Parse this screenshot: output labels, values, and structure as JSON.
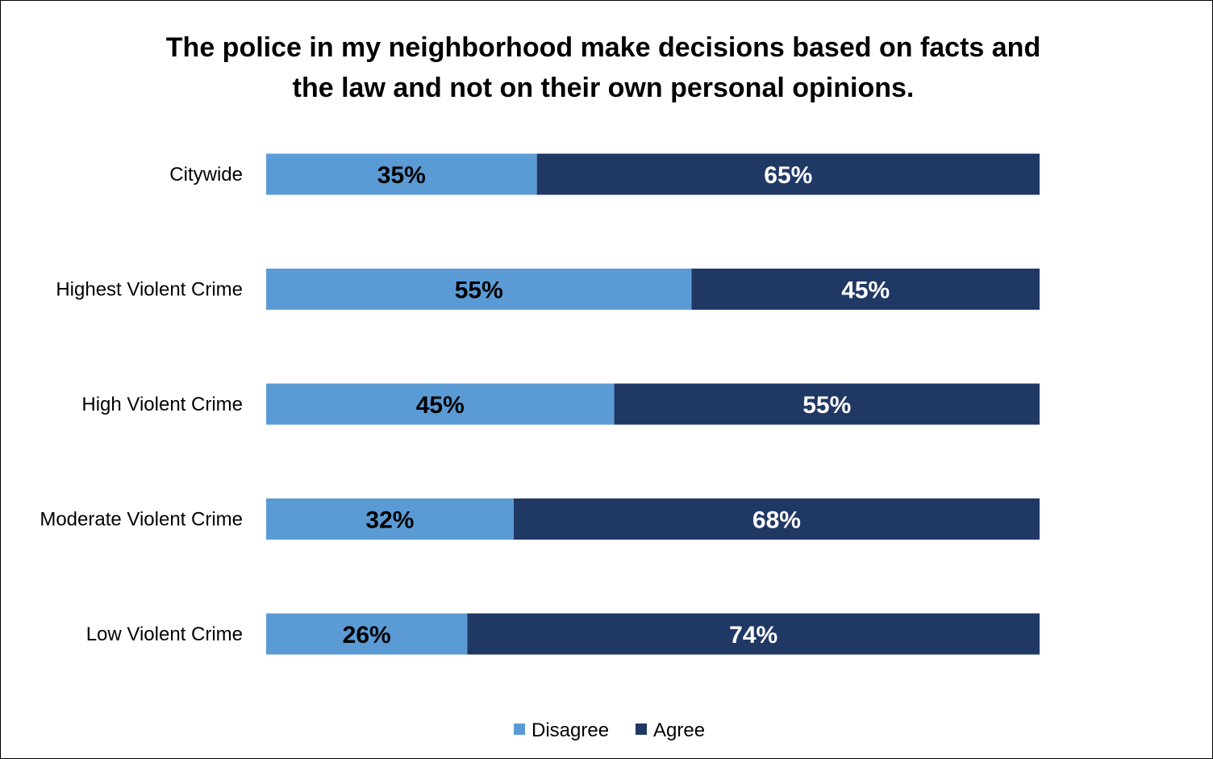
{
  "chart_data": {
    "type": "bar",
    "orientation": "horizontal",
    "stacked": true,
    "title_lines": [
      "The police in my neighborhood make decisions based on facts and",
      "the law and not on their own personal opinions."
    ],
    "categories": [
      "Citywide",
      "Highest Violent Crime",
      "High Violent Crime",
      "Moderate Violent Crime",
      "Low Violent Crime"
    ],
    "series": [
      {
        "name": "Disagree",
        "values": [
          35,
          55,
          45,
          32,
          26
        ],
        "labels": [
          "35%",
          "55%",
          "45%",
          "32%",
          "26%"
        ],
        "color": "#5b9bd5",
        "label_color": "#000000"
      },
      {
        "name": "Agree",
        "values": [
          65,
          45,
          55,
          68,
          74
        ],
        "labels": [
          "65%",
          "45%",
          "55%",
          "68%",
          "74%"
        ],
        "color": "#203864",
        "label_color": "#ffffff"
      }
    ],
    "xlim": [
      0,
      100
    ],
    "grid": false,
    "legend_position": "bottom"
  }
}
